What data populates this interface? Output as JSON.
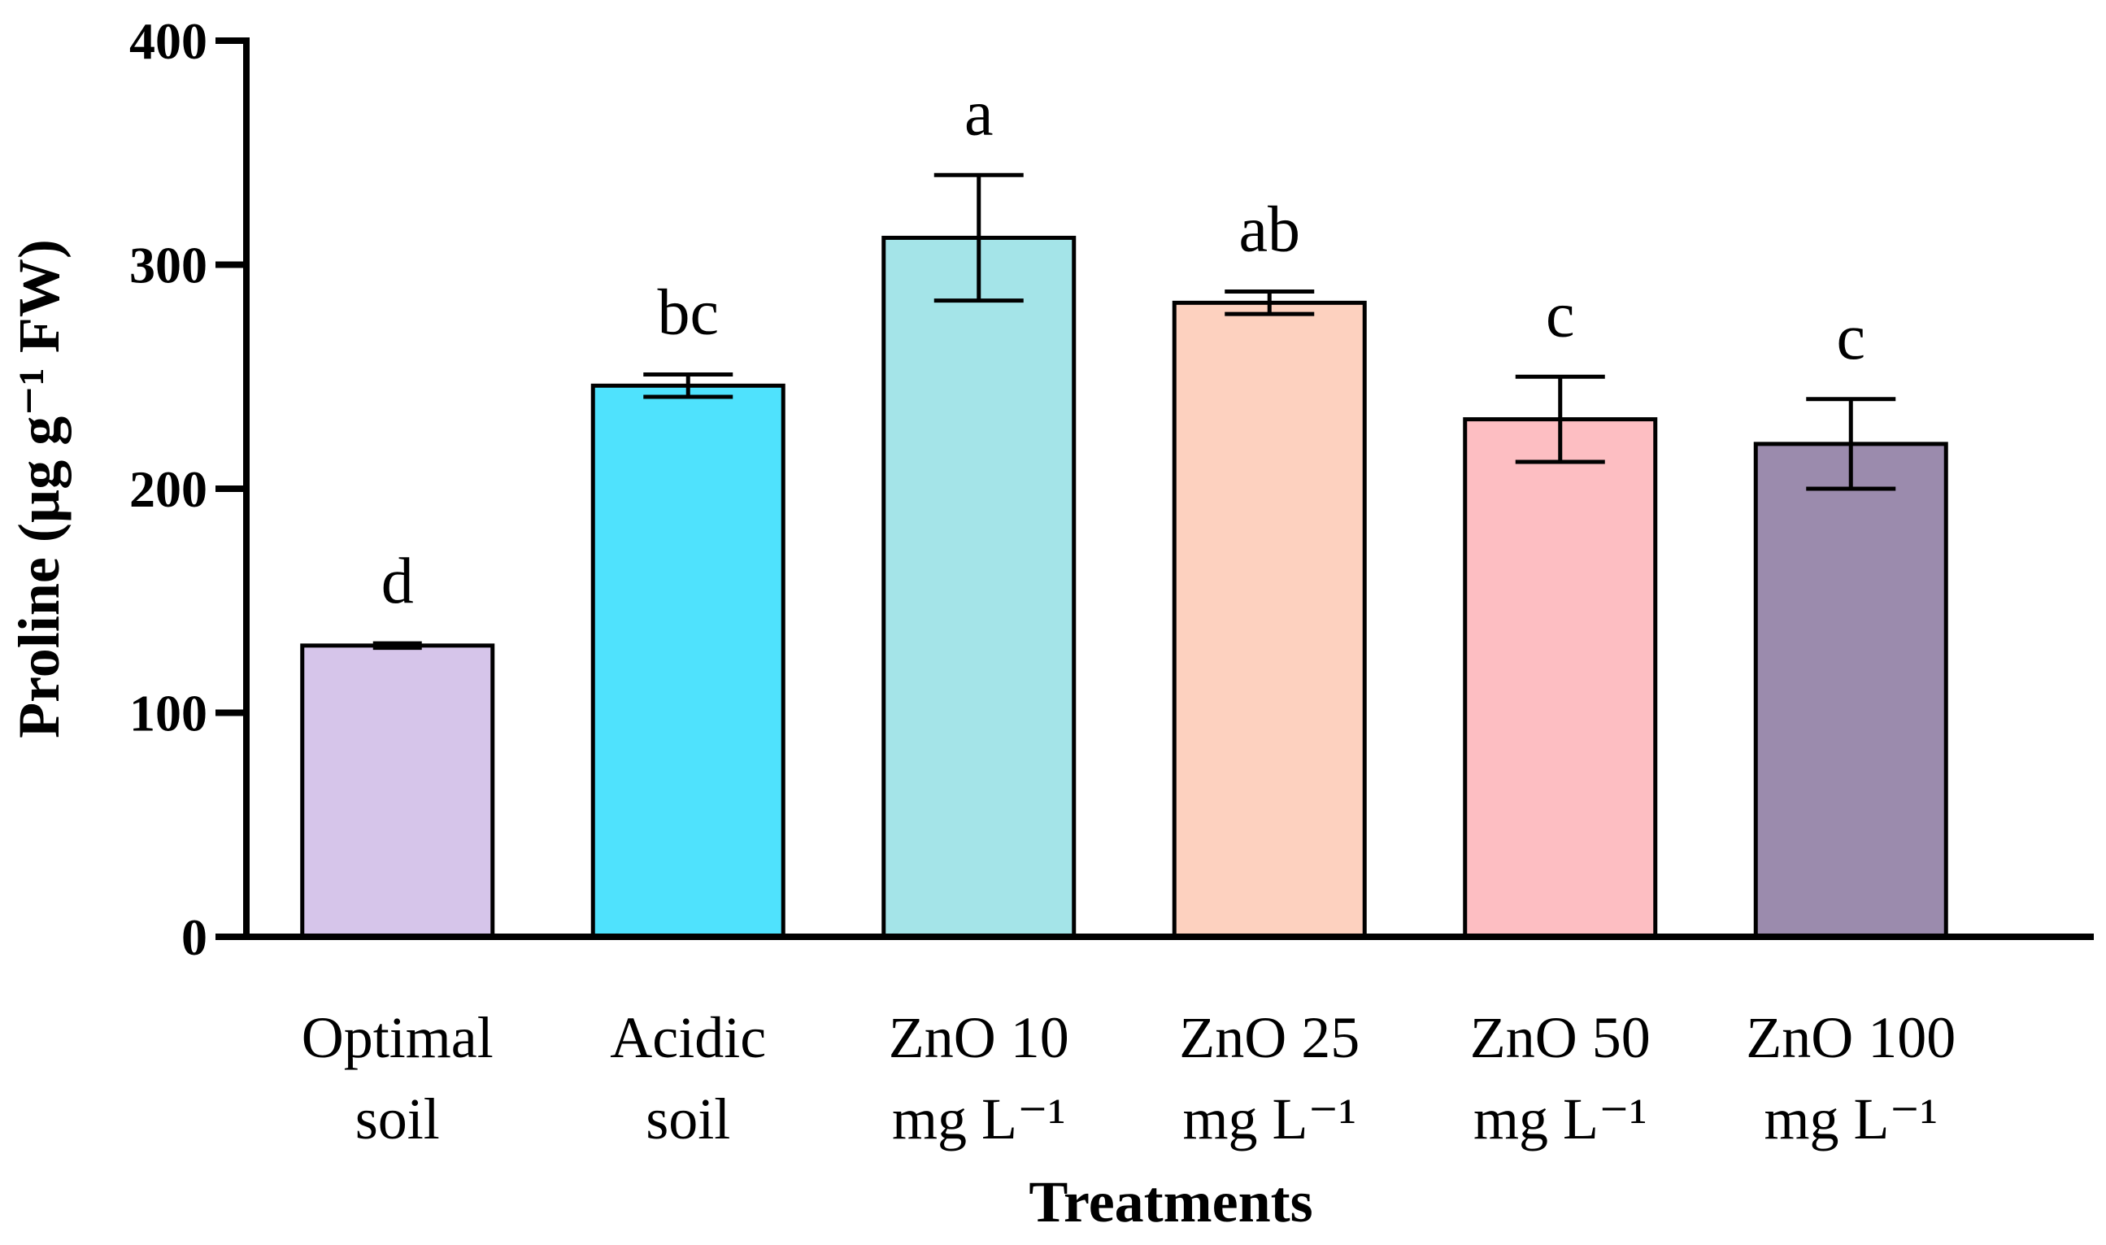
{
  "chart_data": {
    "type": "bar",
    "title": "",
    "xlabel": "Treatments",
    "ylabel": "Proline (µg g⁻¹ FW)",
    "ylim": [
      0,
      400
    ],
    "yticks": [
      0,
      100,
      200,
      300,
      400
    ],
    "categories": [
      {
        "line1": "Optimal",
        "line2": "soil"
      },
      {
        "line1": "Acidic",
        "line2": "soil"
      },
      {
        "line1": "ZnO 10",
        "line2": "mg L⁻¹"
      },
      {
        "line1": "ZnO 25",
        "line2": "mg L⁻¹"
      },
      {
        "line1": "ZnO 50",
        "line2": "mg L⁻¹"
      },
      {
        "line1": "ZnO 100",
        "line2": "mg L⁻¹"
      }
    ],
    "values": [
      130,
      246,
      312,
      283,
      231,
      220
    ],
    "errors": [
      1,
      5,
      28,
      5,
      19,
      20
    ],
    "significance": [
      "d",
      "bc",
      "a",
      "ab",
      "c",
      "c"
    ],
    "colors": [
      "#D6C5EA",
      "#4FE2FD",
      "#A4E4E8",
      "#FDD1BF",
      "#FDBEC2",
      "#9B8BAD"
    ],
    "grid": false,
    "legend": "none"
  }
}
